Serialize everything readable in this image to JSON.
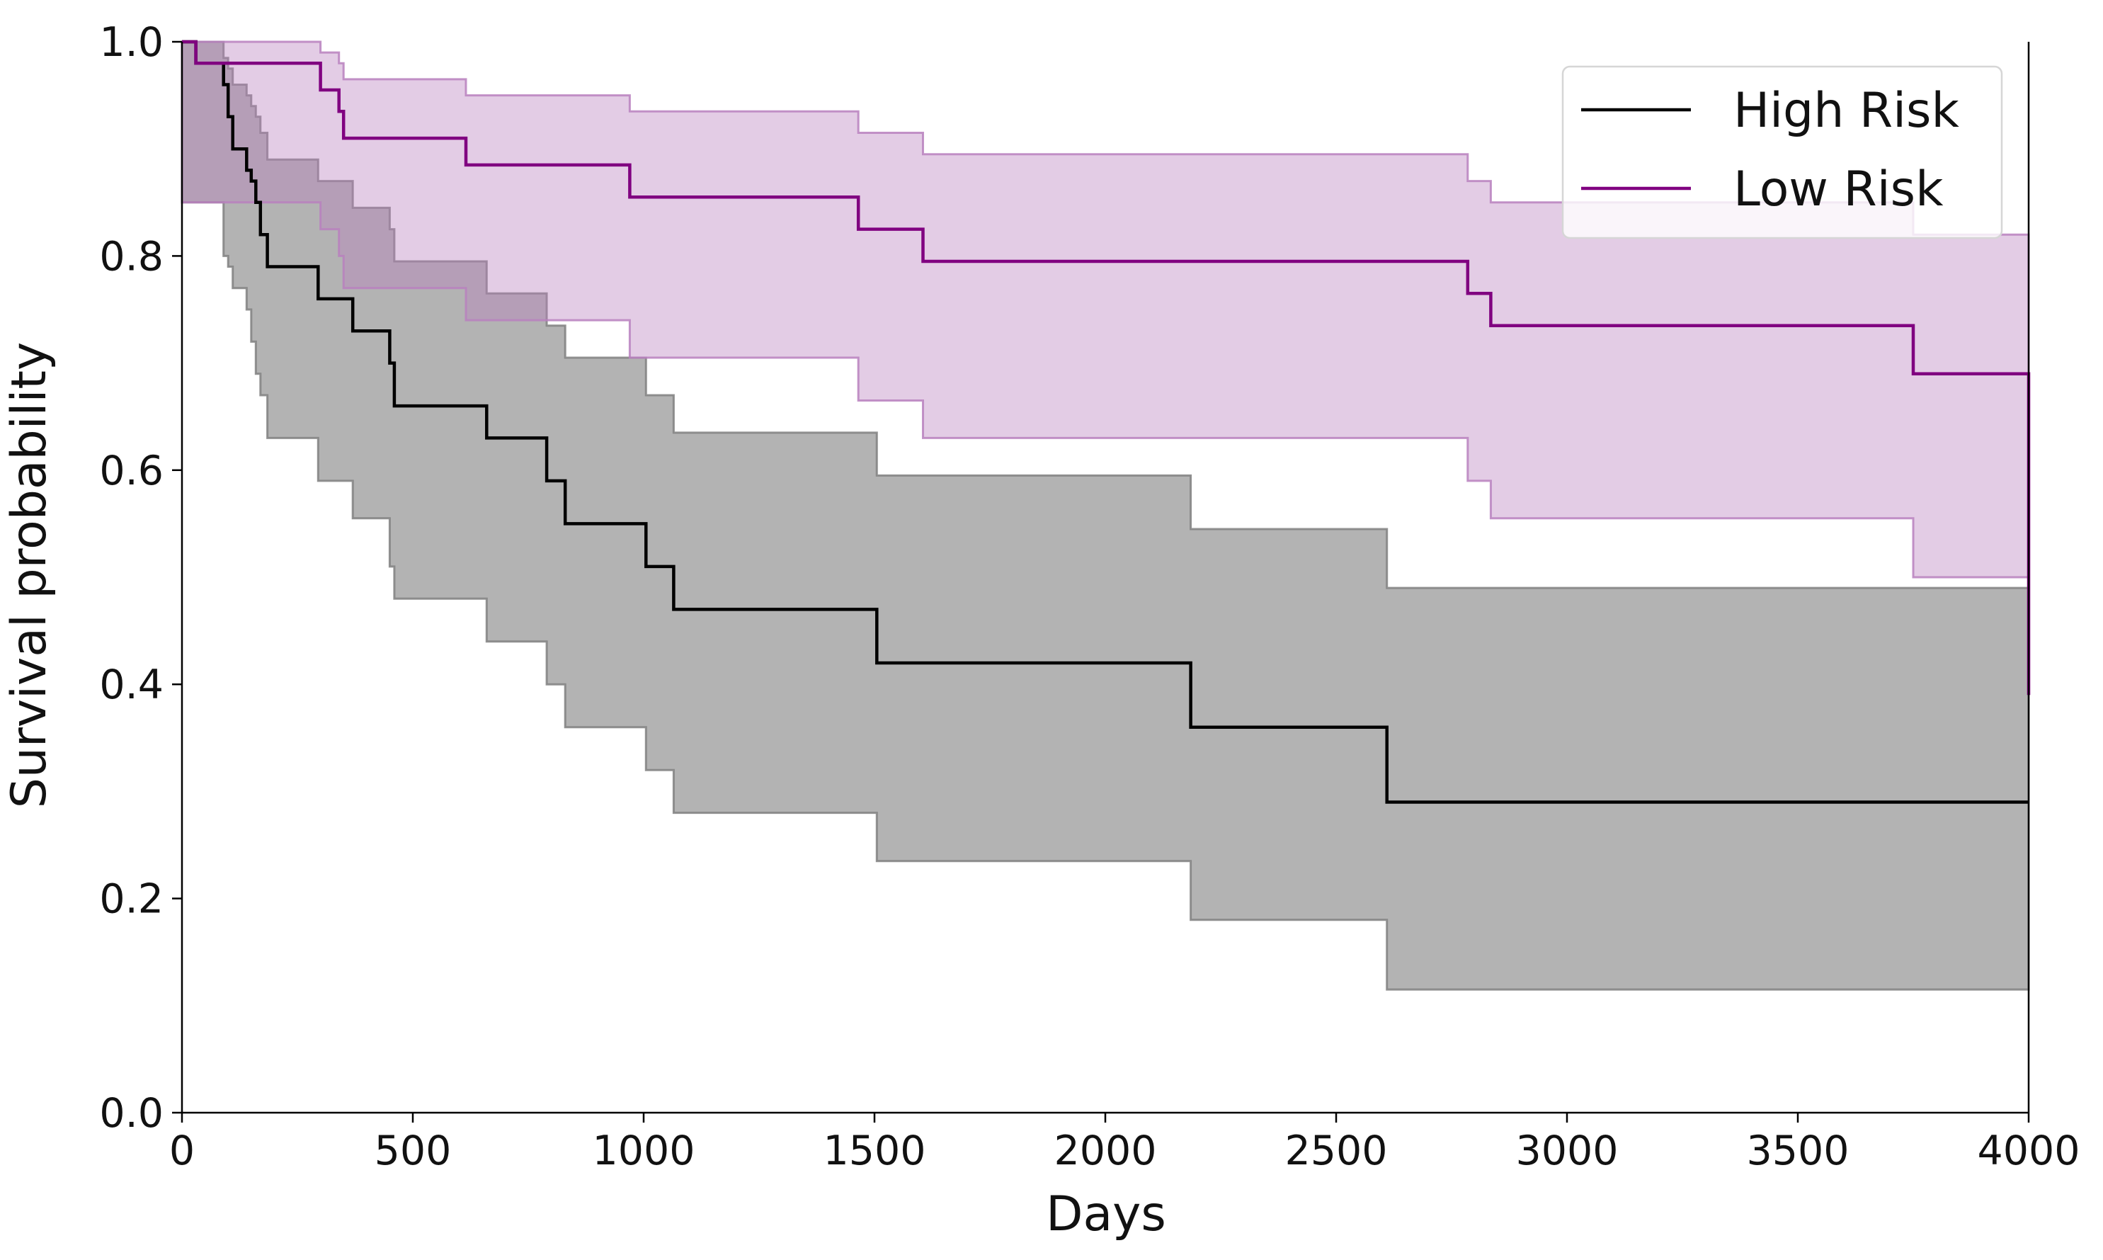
{
  "chart_data": {
    "type": "line",
    "subtype": "kaplan-meier step",
    "title": "",
    "xlabel": "Days",
    "ylabel": "Survival probability",
    "xlim": [
      0,
      4000
    ],
    "ylim": [
      0.0,
      1.0
    ],
    "x_ticks": [
      0,
      500,
      1000,
      1500,
      2000,
      2500,
      3000,
      3500,
      4000
    ],
    "y_ticks": [
      "0.0",
      "0.2",
      "0.4",
      "0.6",
      "0.8",
      "1.0"
    ],
    "grid": false,
    "legend_position": "top-right",
    "series": [
      {
        "name": "High Risk",
        "color": "#000000",
        "band_color": "#808080",
        "band_opacity": 0.6,
        "steps": [
          [
            0,
            1.0
          ],
          [
            30,
            0.98
          ],
          [
            90,
            0.96
          ],
          [
            100,
            0.93
          ],
          [
            110,
            0.9
          ],
          [
            140,
            0.88
          ],
          [
            150,
            0.87
          ],
          [
            160,
            0.85
          ],
          [
            170,
            0.82
          ],
          [
            185,
            0.79
          ],
          [
            295,
            0.76
          ],
          [
            370,
            0.73
          ],
          [
            450,
            0.7
          ],
          [
            460,
            0.66
          ],
          [
            660,
            0.63
          ],
          [
            790,
            0.59
          ],
          [
            830,
            0.55
          ],
          [
            1005,
            0.51
          ],
          [
            1065,
            0.47
          ],
          [
            1505,
            0.42
          ],
          [
            2185,
            0.36
          ],
          [
            2610,
            0.29
          ],
          [
            4000,
            0.29
          ]
        ],
        "ci_upper": [
          [
            0,
            1.0
          ],
          [
            90,
            0.985
          ],
          [
            100,
            0.975
          ],
          [
            110,
            0.96
          ],
          [
            140,
            0.95
          ],
          [
            150,
            0.94
          ],
          [
            160,
            0.93
          ],
          [
            170,
            0.915
          ],
          [
            185,
            0.89
          ],
          [
            295,
            0.87
          ],
          [
            370,
            0.845
          ],
          [
            450,
            0.825
          ],
          [
            460,
            0.795
          ],
          [
            660,
            0.765
          ],
          [
            790,
            0.735
          ],
          [
            830,
            0.705
          ],
          [
            1005,
            0.67
          ],
          [
            1065,
            0.635
          ],
          [
            1505,
            0.595
          ],
          [
            2185,
            0.545
          ],
          [
            2610,
            0.49
          ],
          [
            4000,
            0.49
          ]
        ],
        "ci_lower": [
          [
            0,
            0.85
          ],
          [
            90,
            0.8
          ],
          [
            100,
            0.79
          ],
          [
            110,
            0.77
          ],
          [
            140,
            0.75
          ],
          [
            150,
            0.72
          ],
          [
            160,
            0.69
          ],
          [
            170,
            0.67
          ],
          [
            185,
            0.63
          ],
          [
            295,
            0.59
          ],
          [
            370,
            0.555
          ],
          [
            450,
            0.51
          ],
          [
            460,
            0.48
          ],
          [
            660,
            0.44
          ],
          [
            790,
            0.4
          ],
          [
            830,
            0.36
          ],
          [
            1005,
            0.32
          ],
          [
            1065,
            0.28
          ],
          [
            1505,
            0.235
          ],
          [
            2185,
            0.18
          ],
          [
            2610,
            0.115
          ],
          [
            4000,
            0.115
          ]
        ]
      },
      {
        "name": "Low Risk",
        "color": "#800080",
        "band_color": "#b980be",
        "band_opacity": 0.4,
        "steps": [
          [
            0,
            1.0
          ],
          [
            30,
            0.98
          ],
          [
            300,
            0.955
          ],
          [
            340,
            0.935
          ],
          [
            350,
            0.91
          ],
          [
            615,
            0.885
          ],
          [
            970,
            0.855
          ],
          [
            1465,
            0.825
          ],
          [
            1605,
            0.795
          ],
          [
            2785,
            0.765
          ],
          [
            2835,
            0.735
          ],
          [
            3750,
            0.69
          ],
          [
            4000,
            0.69
          ]
        ],
        "ci_upper": [
          [
            0,
            1.0
          ],
          [
            300,
            0.99
          ],
          [
            340,
            0.98
          ],
          [
            350,
            0.965
          ],
          [
            615,
            0.95
          ],
          [
            970,
            0.935
          ],
          [
            1465,
            0.915
          ],
          [
            1605,
            0.895
          ],
          [
            2785,
            0.87
          ],
          [
            2835,
            0.85
          ],
          [
            3750,
            0.82
          ],
          [
            4000,
            0.82
          ]
        ],
        "ci_lower": [
          [
            0,
            0.85
          ],
          [
            300,
            0.825
          ],
          [
            340,
            0.8
          ],
          [
            350,
            0.77
          ],
          [
            615,
            0.74
          ],
          [
            970,
            0.705
          ],
          [
            1465,
            0.665
          ],
          [
            1605,
            0.63
          ],
          [
            2785,
            0.59
          ],
          [
            2835,
            0.555
          ],
          [
            3750,
            0.5
          ],
          [
            4000,
            0.5
          ]
        ],
        "censor_drop": 0.39
      }
    ]
  }
}
